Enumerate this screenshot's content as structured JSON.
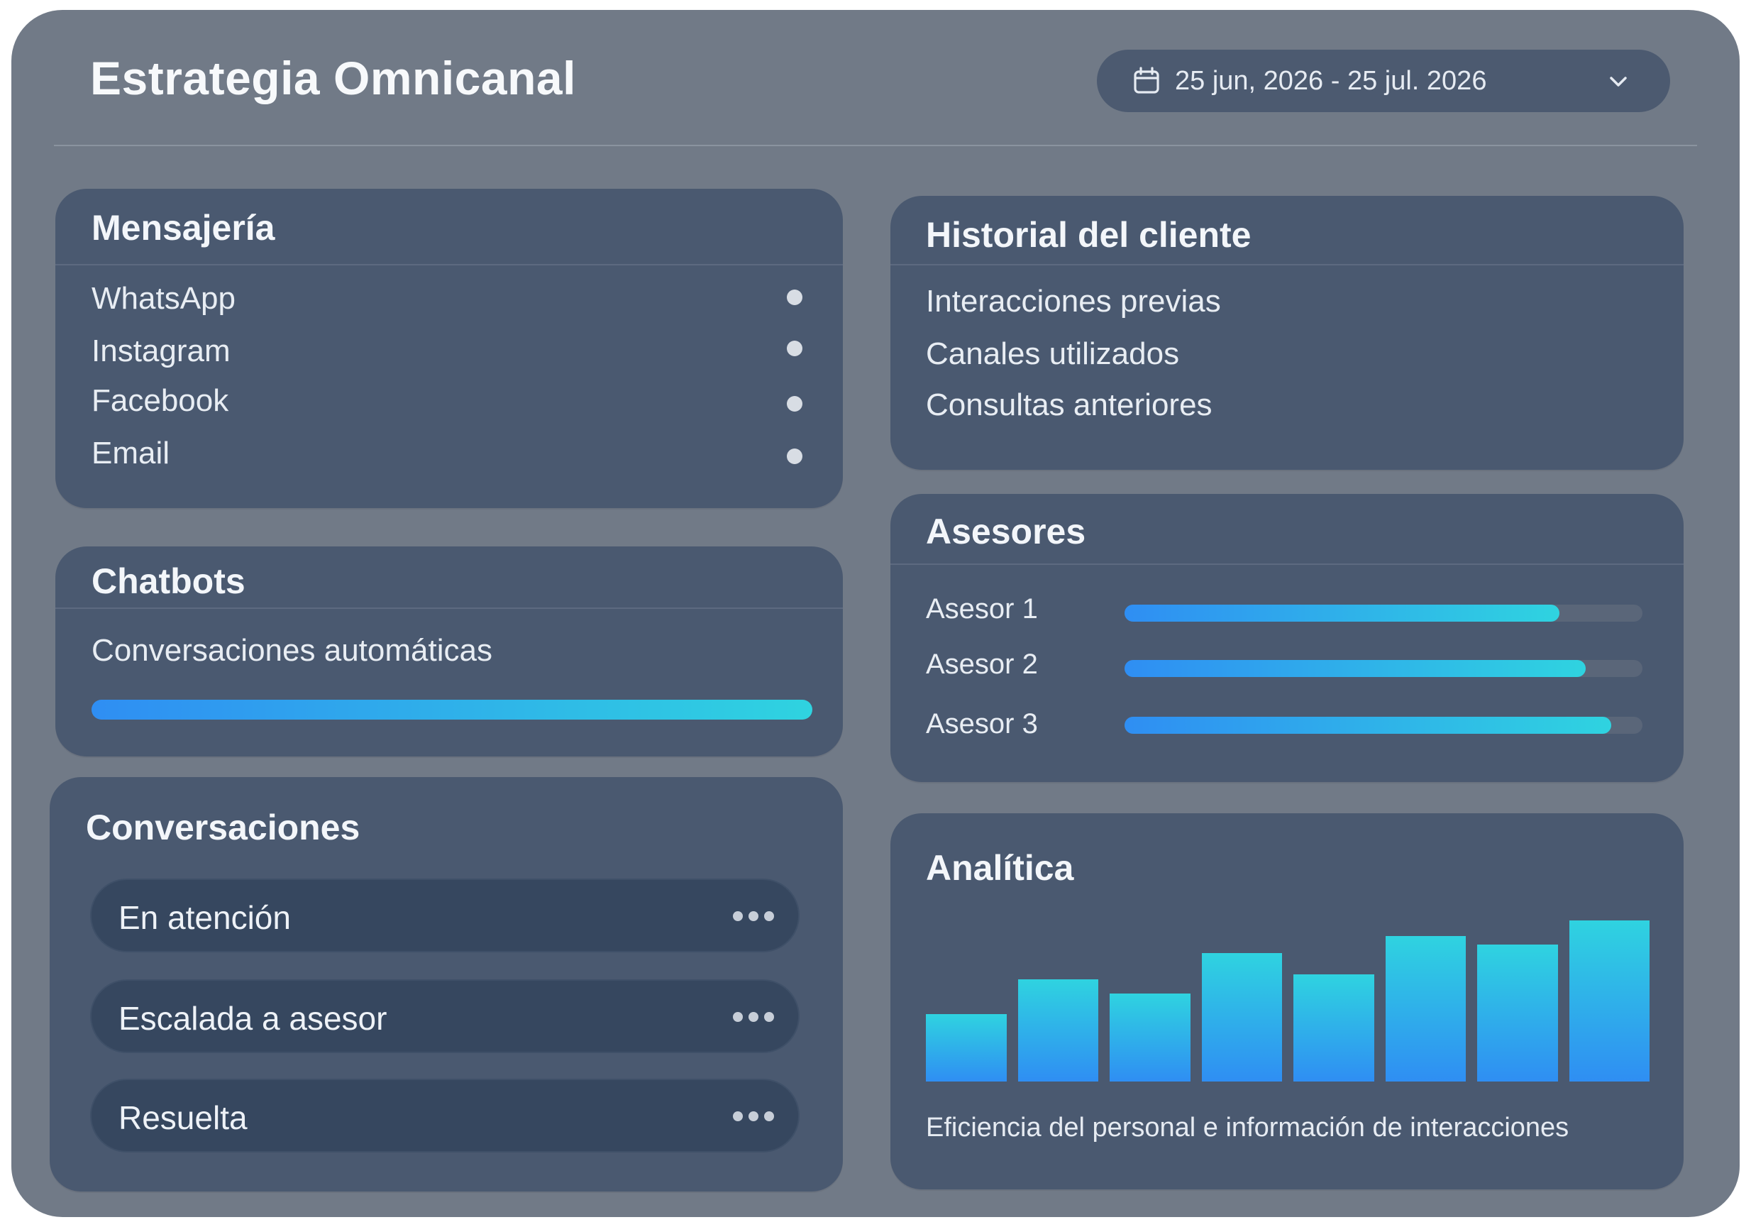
{
  "header": {
    "title": "Estrategia Omnicanal",
    "date_range": "25 jun, 2026 - 25 jul. 2026",
    "calendar_icon": "calendar-icon",
    "dropdown_icon": "chevron-down-icon"
  },
  "colors": {
    "background": "#717a87",
    "card": "#4a5970",
    "pill": "#36475f",
    "gradient_start": "#2f8ef3",
    "gradient_end": "#2fd3e0"
  },
  "mensajeria": {
    "title": "Mensajería",
    "items": [
      {
        "label": "WhatsApp"
      },
      {
        "label": "Instagram"
      },
      {
        "label": "Facebook"
      },
      {
        "label": "Email"
      }
    ]
  },
  "chatbots": {
    "title": "Chatbots",
    "label": "Conversaciones automáticas",
    "progress": 1.0
  },
  "conversaciones": {
    "title": "Conversaciones",
    "items": [
      {
        "label": "En atención",
        "menu_icon": "more-horizontal-icon"
      },
      {
        "label": "Escalada a asesor",
        "menu_icon": "more-horizontal-icon"
      },
      {
        "label": "Resuelta",
        "menu_icon": "more-horizontal-icon"
      }
    ]
  },
  "historial": {
    "title": "Historial del cliente",
    "items": [
      {
        "label": "Interacciones previas"
      },
      {
        "label": "Canales utilizados"
      },
      {
        "label": "Consultas anteriores"
      }
    ]
  },
  "asesores": {
    "title": "Asesores",
    "items": [
      {
        "label": "Asesor 1",
        "progress": 0.84
      },
      {
        "label": "Asesor 2",
        "progress": 0.89
      },
      {
        "label": "Asesor 3",
        "progress": 0.94
      }
    ]
  },
  "analitica": {
    "title": "Analítica",
    "caption": "Eficiencia del personal e información de interacciones",
    "chart_data": {
      "type": "bar",
      "values": [
        39,
        59,
        51,
        74,
        62,
        84,
        79,
        93
      ],
      "ylim": [
        0,
        100
      ],
      "grid": false
    }
  }
}
